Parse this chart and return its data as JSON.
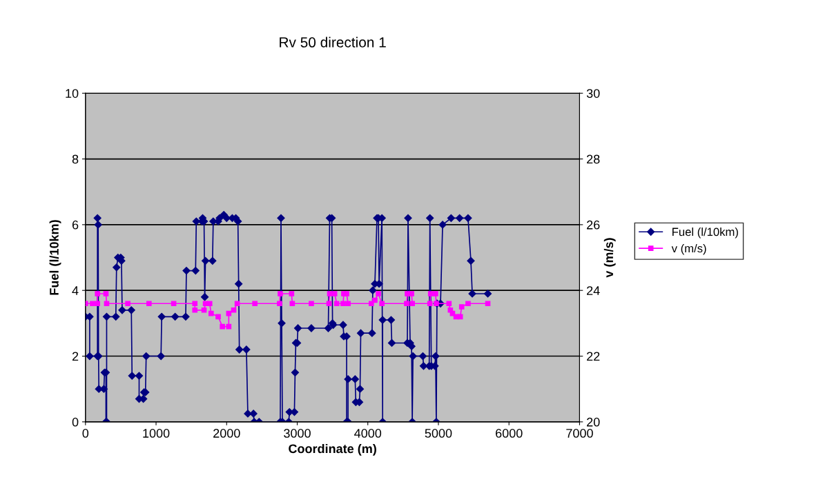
{
  "chart_data": {
    "type": "line",
    "title": "Rv 50 direction 1",
    "xlabel": "Coordinate (m)",
    "ylabel": "Fuel (l/10km)",
    "y2label": "v (m/s)",
    "xlim": [
      0,
      7000
    ],
    "xticks": [
      0,
      1000,
      2000,
      3000,
      4000,
      5000,
      6000,
      7000
    ],
    "ylim": [
      0,
      10
    ],
    "yticks": [
      0,
      2,
      4,
      6,
      8,
      10
    ],
    "y2lim": [
      20,
      30
    ],
    "y2ticks": [
      20,
      22,
      24,
      26,
      28,
      30
    ],
    "grid": "y",
    "legend": "right",
    "line_style": "solid",
    "series": [
      {
        "name": "Fuel (l/10km)",
        "color": "#000080",
        "marker": "diamond",
        "x": [
          0,
          60,
          60,
          170,
          170,
          180,
          185,
          190,
          260,
          270,
          290,
          290,
          300,
          300,
          430,
          440,
          460,
          500,
          510,
          520,
          650,
          660,
          760,
          760,
          820,
          830,
          850,
          860,
          1070,
          1080,
          1270,
          1420,
          1430,
          1560,
          1570,
          1650,
          1660,
          1680,
          1690,
          1700,
          1800,
          1810,
          1880,
          1900,
          1960,
          2000,
          2080,
          2130,
          2160,
          2170,
          2180,
          2280,
          2300,
          2380,
          2390,
          2460,
          2760,
          2770,
          2780,
          2790,
          2880,
          2890,
          2960,
          2970,
          2980,
          3000,
          3010,
          3200,
          3440,
          3460,
          3490,
          3500,
          3510,
          3650,
          3660,
          3700,
          3700,
          3720,
          3720,
          3820,
          3830,
          3880,
          3890,
          3900,
          4060,
          4070,
          4100,
          4130,
          4150,
          4160,
          4200,
          4210,
          4210,
          4330,
          4340,
          4560,
          4570,
          4600,
          4620,
          4630,
          4640,
          4780,
          4790,
          4870,
          4880,
          4900,
          4950,
          4960,
          4970,
          4980,
          5030,
          5060,
          5180,
          5300,
          5420,
          5460,
          5480,
          5700
        ],
        "values": [
          3.2,
          3.2,
          2.0,
          2.0,
          6.2,
          6.0,
          2.0,
          1.0,
          1.0,
          1.5,
          1.5,
          0,
          0,
          3.2,
          3.2,
          4.7,
          5.0,
          5.0,
          4.9,
          3.4,
          3.4,
          1.4,
          1.4,
          0.7,
          0.7,
          0.9,
          0.9,
          2.0,
          2.0,
          3.2,
          3.2,
          3.2,
          4.6,
          4.6,
          6.1,
          6.1,
          6.2,
          6.1,
          3.8,
          4.9,
          4.9,
          6.1,
          6.1,
          6.2,
          6.3,
          6.2,
          6.2,
          6.2,
          6.1,
          4.2,
          2.2,
          2.2,
          0.25,
          0.25,
          0,
          0,
          0,
          6.2,
          3.0,
          0,
          0,
          0.3,
          0.3,
          1.5,
          2.4,
          2.4,
          2.85,
          2.85,
          2.85,
          6.2,
          6.2,
          3.0,
          2.95,
          2.95,
          2.6,
          2.6,
          0,
          0,
          1.3,
          1.3,
          0.6,
          0.6,
          1.0,
          2.7,
          2.7,
          4.0,
          4.2,
          6.2,
          6.2,
          4.2,
          6.2,
          0,
          3.1,
          3.1,
          2.4,
          2.4,
          6.2,
          2.4,
          2.3,
          0,
          2.0,
          2.0,
          1.7,
          1.7,
          6.2,
          1.7,
          1.7,
          2.0,
          0,
          3.6,
          3.6,
          6.0,
          6.2,
          6.2,
          6.2,
          4.9,
          3.9,
          3.9
        ]
      },
      {
        "name": "v (m/s)",
        "color": "#ff00ff",
        "marker": "square",
        "axis": "y2",
        "x": [
          0,
          100,
          170,
          170,
          290,
          300,
          600,
          900,
          1250,
          1550,
          1550,
          1680,
          1700,
          1760,
          1780,
          1880,
          1940,
          2030,
          2030,
          2100,
          2150,
          2400,
          2750,
          2760,
          2920,
          2930,
          3200,
          3450,
          3460,
          3530,
          3560,
          3650,
          3660,
          3700,
          3720,
          4050,
          4100,
          4150,
          4200,
          4550,
          4560,
          4620,
          4630,
          4880,
          4890,
          4960,
          4970,
          5150,
          5170,
          5200,
          5250,
          5310,
          5330,
          5420,
          5700
        ],
        "values": [
          23.6,
          23.6,
          23.6,
          23.9,
          23.9,
          23.6,
          23.6,
          23.6,
          23.6,
          23.6,
          23.4,
          23.4,
          23.6,
          23.6,
          23.3,
          23.2,
          22.9,
          22.9,
          23.3,
          23.4,
          23.6,
          23.6,
          23.6,
          23.9,
          23.9,
          23.6,
          23.6,
          23.6,
          23.9,
          23.9,
          23.6,
          23.6,
          23.9,
          23.9,
          23.6,
          23.6,
          23.7,
          23.9,
          23.6,
          23.6,
          23.9,
          23.9,
          23.6,
          23.6,
          23.9,
          23.9,
          23.6,
          23.6,
          23.4,
          23.3,
          23.2,
          23.2,
          23.5,
          23.6,
          23.6
        ]
      }
    ]
  }
}
